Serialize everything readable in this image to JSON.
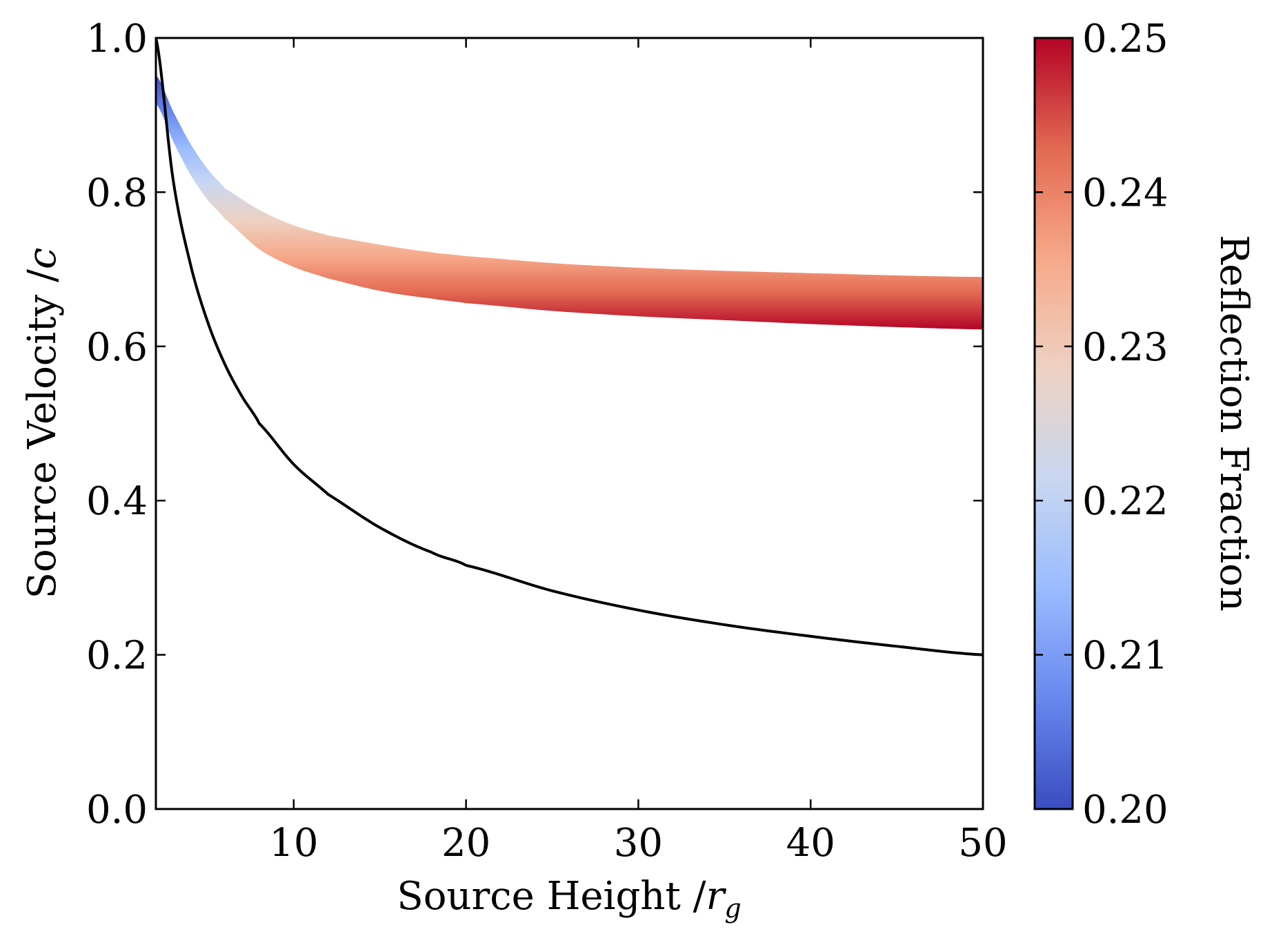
{
  "chart_data": {
    "type": "line",
    "xlabel": "Source Height /r_g",
    "xlabel_main": "Source Height /",
    "xlabel_var": "r",
    "xlabel_sub": "g",
    "ylabel": "Source Velocity /c",
    "ylabel_main": "Source Velocity /",
    "ylabel_var": "c",
    "xlim": [
      2,
      50
    ],
    "ylim": [
      0.0,
      1.0
    ],
    "x_ticks": [
      10,
      20,
      30,
      40,
      50
    ],
    "x_tick_labels": [
      "10",
      "20",
      "30",
      "40",
      "50"
    ],
    "y_ticks": [
      0.0,
      0.2,
      0.4,
      0.6,
      0.8,
      1.0
    ],
    "y_tick_labels": [
      "0.0",
      "0.2",
      "0.4",
      "0.6",
      "0.8",
      "1.0"
    ],
    "grid": false,
    "series": [
      {
        "name": "black curve",
        "color": "#000000",
        "x": [
          2,
          3,
          4,
          5,
          6,
          7,
          8,
          10,
          12,
          15,
          18,
          20,
          25,
          30,
          35,
          40,
          45,
          50
        ],
        "y": [
          1.0,
          0.816,
          0.707,
          0.632,
          0.577,
          0.535,
          0.5,
          0.447,
          0.408,
          0.365,
          0.333,
          0.316,
          0.283,
          0.258,
          0.239,
          0.224,
          0.211,
          0.2
        ]
      }
    ],
    "band": {
      "name": "reflection fraction band",
      "colormap": "coolwarm",
      "x": [
        2,
        3,
        4,
        5,
        6,
        8,
        10,
        12,
        15,
        18,
        20,
        25,
        30,
        35,
        40,
        45,
        50
      ],
      "y_top": [
        0.952,
        0.905,
        0.863,
        0.83,
        0.805,
        0.777,
        0.757,
        0.744,
        0.732,
        0.722,
        0.717,
        0.708,
        0.702,
        0.698,
        0.695,
        0.692,
        0.69
      ],
      "y_bottom": [
        0.915,
        0.866,
        0.823,
        0.79,
        0.765,
        0.726,
        0.703,
        0.688,
        0.672,
        0.662,
        0.656,
        0.646,
        0.639,
        0.634,
        0.629,
        0.625,
        0.622
      ],
      "top_value": 0.2,
      "bottom_value": 0.25
    },
    "colorbar": {
      "label": "Reflection Fraction",
      "range": [
        0.2,
        0.25
      ],
      "ticks": [
        0.2,
        0.21,
        0.22,
        0.23,
        0.24,
        0.25
      ],
      "tick_labels": [
        "0.20",
        "0.21",
        "0.22",
        "0.23",
        "0.24",
        "0.25"
      ],
      "colors": [
        "#3b4cc0",
        "#6788ee",
        "#9abbff",
        "#c9d7f0",
        "#edd1c2",
        "#f7a889",
        "#e26952",
        "#b40426"
      ]
    }
  }
}
